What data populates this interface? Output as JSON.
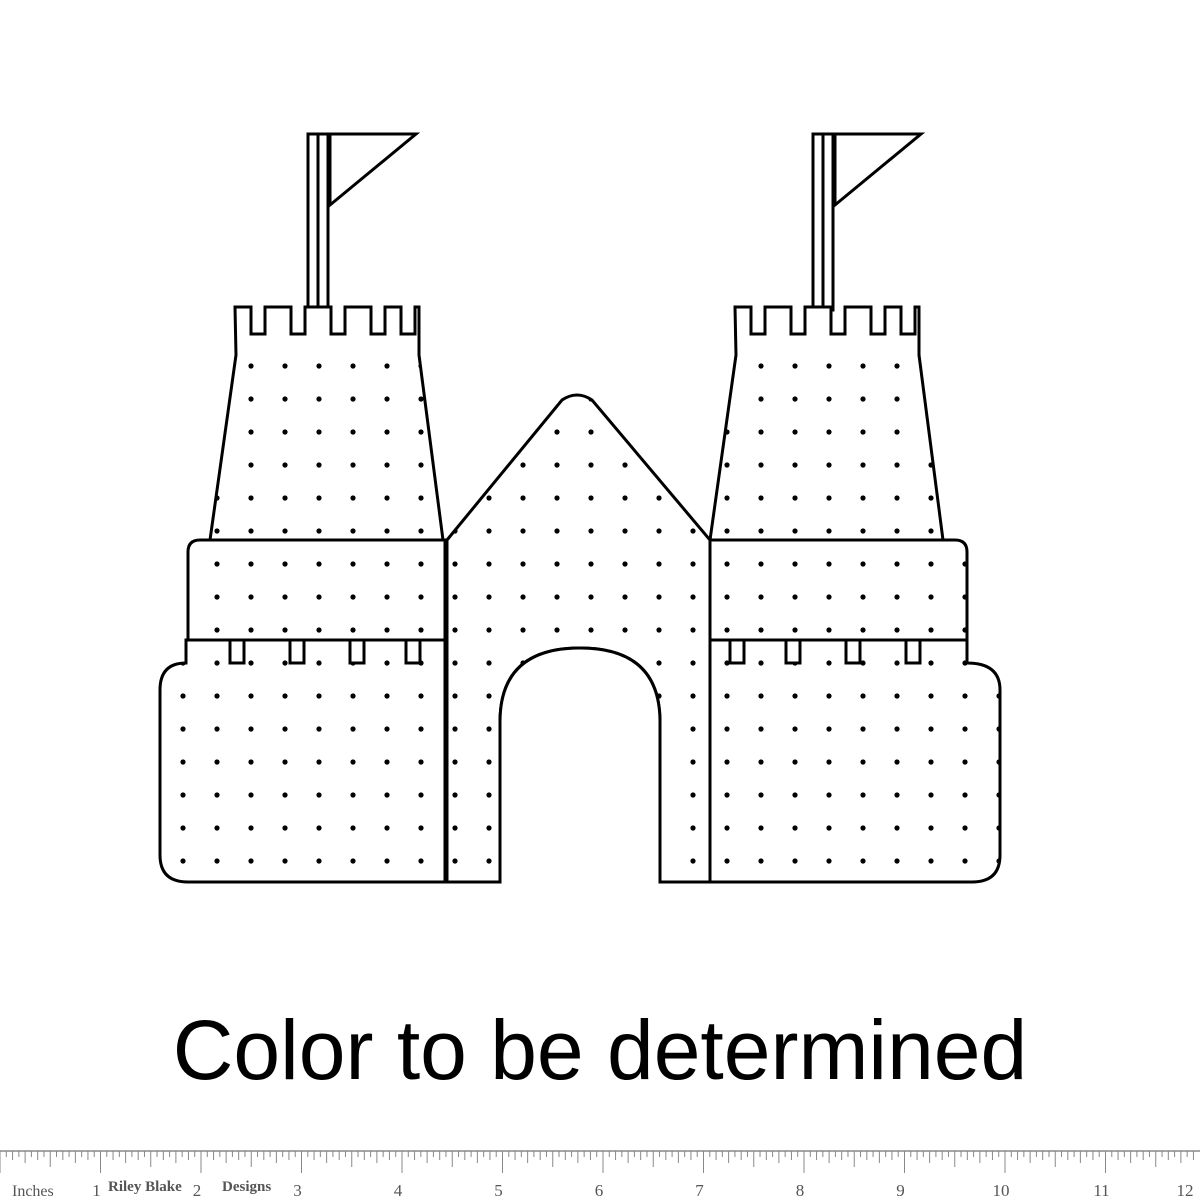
{
  "caption": "Color to be determined",
  "ruler": {
    "unit_label": "Inches",
    "brand_text": [
      "Riley Blake",
      "Designs"
    ],
    "numbers": [
      "1",
      "2",
      "3",
      "4",
      "5",
      "6",
      "7",
      "8",
      "9",
      "10",
      "11",
      "12"
    ]
  },
  "colors": {
    "outline": "#000000",
    "background": "#ffffff",
    "ruler": "#777777"
  },
  "artwork": {
    "subject": "sandcastle-outline",
    "pattern": "polka-dots"
  }
}
